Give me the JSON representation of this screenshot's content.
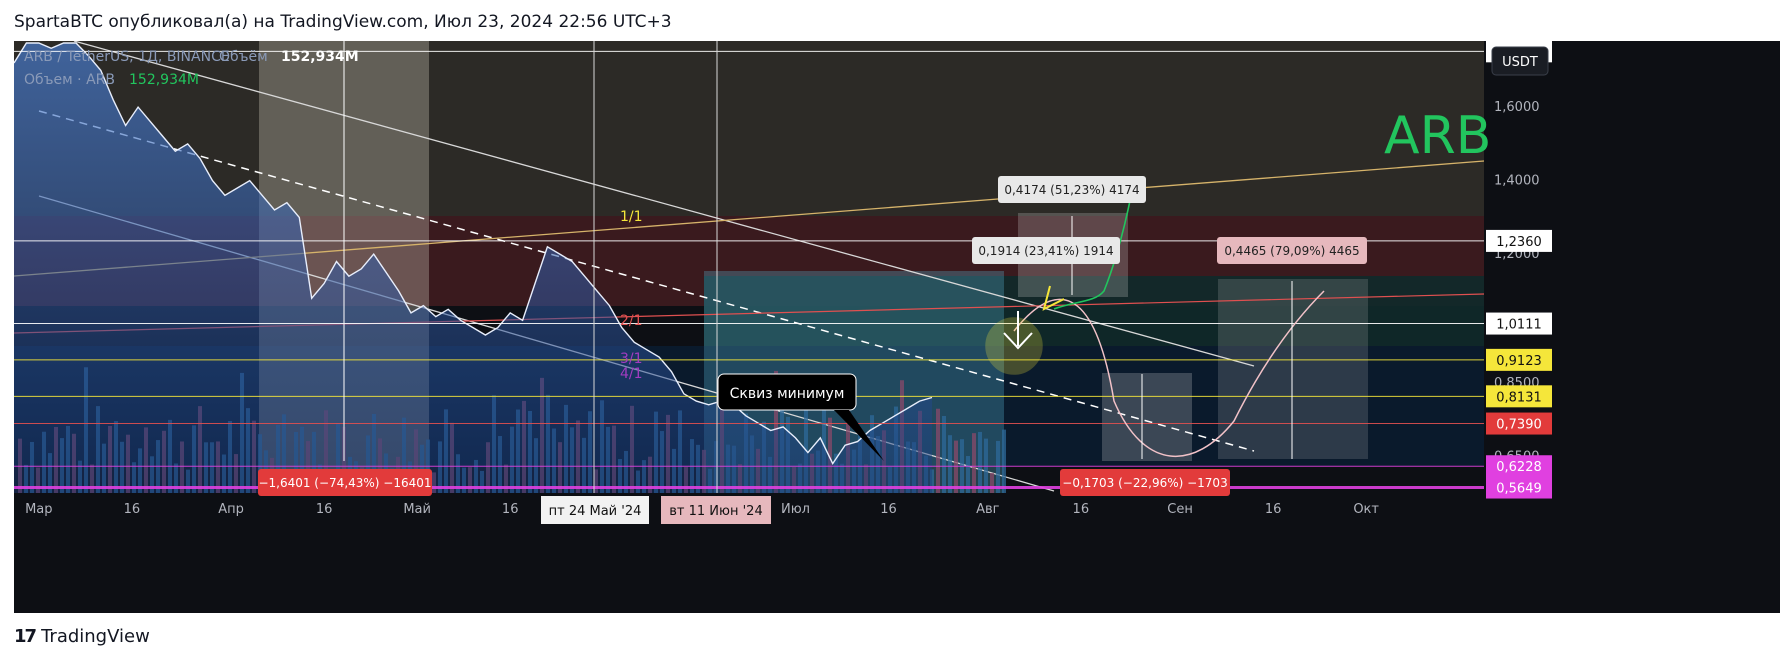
{
  "header": {
    "publish_line": "SpartaBTC опубликовал(а) на TradingView.com, Июл 23, 2024 22:56 UTC+3"
  },
  "legend": {
    "symbol_line": "ARB / TetherUS, 1Д, BINANCE",
    "volume_label": "Объём",
    "volume_value": "152,934M",
    "volume_line": "Объем · ARB",
    "volume_line_value": "152,934M"
  },
  "currency_button": "USDT",
  "big_label": "ARB",
  "footer": {
    "logo_mark": "17",
    "logo_text": "TradingView"
  },
  "colors": {
    "background": "#0d0f14",
    "price_area": "#4a7fd4",
    "accent_green": "#22c55e",
    "magenta_line": "#e040e0",
    "red_tag": "#e23b3b",
    "yellow_tag": "#f5e63a"
  },
  "chart_data": {
    "type": "area",
    "xlim": [
      "2024-02-26",
      "2024-10-20"
    ],
    "ylim": [
      0.55,
      1.78
    ],
    "x_tick_labels": [
      "Мар",
      "16",
      "Апр",
      "16",
      "Май",
      "16",
      "Июн",
      "16",
      "Июл",
      "16",
      "Авг",
      "16",
      "Сен",
      "16",
      "Окт"
    ],
    "x_tick_dates": [
      "2024-03-01",
      "2024-03-16",
      "2024-04-01",
      "2024-04-16",
      "2024-05-01",
      "2024-05-16",
      "2024-06-01",
      "2024-06-16",
      "2024-07-01",
      "2024-07-16",
      "2024-08-01",
      "2024-08-16",
      "2024-09-01",
      "2024-09-16",
      "2024-10-01"
    ],
    "y_tick_labels": [
      "1,6000",
      "1,4000",
      "1,2000",
      "0,8500",
      "0,6500"
    ],
    "y_tick_values": [
      1.6,
      1.4,
      1.2,
      0.85,
      0.65
    ],
    "price_tags": [
      {
        "label": "1,7519",
        "value": 1.7519,
        "style": "white"
      },
      {
        "label": "1,2360",
        "value": 1.236,
        "style": "white"
      },
      {
        "label": "1,0111",
        "value": 1.0111,
        "style": "white"
      },
      {
        "label": "0,9123",
        "value": 0.9123,
        "style": "yellow"
      },
      {
        "label": "0,8131",
        "value": 0.8131,
        "style": "yellow"
      },
      {
        "label": "0,7390",
        "value": 0.739,
        "style": "red"
      },
      {
        "label": "0,6228",
        "value": 0.6228,
        "style": "magenta"
      },
      {
        "label": "0,5649",
        "value": 0.5649,
        "style": "magenta"
      }
    ],
    "series": [
      {
        "x": [
          "2024-02-26",
          "2024-02-28",
          "2024-03-01",
          "2024-03-03",
          "2024-03-05",
          "2024-03-07",
          "2024-03-09",
          "2024-03-11",
          "2024-03-13",
          "2024-03-15",
          "2024-03-17",
          "2024-03-19",
          "2024-03-21",
          "2024-03-23",
          "2024-03-25",
          "2024-03-27",
          "2024-03-29",
          "2024-03-31",
          "2024-04-02",
          "2024-04-04",
          "2024-04-06",
          "2024-04-08",
          "2024-04-10",
          "2024-04-12",
          "2024-04-14",
          "2024-04-16",
          "2024-04-18",
          "2024-04-20",
          "2024-04-22",
          "2024-04-24",
          "2024-04-26",
          "2024-04-28",
          "2024-04-30",
          "2024-05-02",
          "2024-05-04",
          "2024-05-06",
          "2024-05-08",
          "2024-05-10",
          "2024-05-12",
          "2024-05-14",
          "2024-05-16",
          "2024-05-18",
          "2024-05-20",
          "2024-05-22",
          "2024-05-24",
          "2024-05-26",
          "2024-05-28",
          "2024-05-30",
          "2024-06-01",
          "2024-06-03",
          "2024-06-05",
          "2024-06-07",
          "2024-06-09",
          "2024-06-11",
          "2024-06-13",
          "2024-06-15",
          "2024-06-17",
          "2024-06-19",
          "2024-06-21",
          "2024-06-23",
          "2024-06-25",
          "2024-06-27",
          "2024-06-29",
          "2024-07-01",
          "2024-07-03",
          "2024-07-05",
          "2024-07-07",
          "2024-07-09",
          "2024-07-11",
          "2024-07-13",
          "2024-07-15",
          "2024-07-17",
          "2024-07-19",
          "2024-07-21",
          "2024-07-23"
        ],
        "y": [
          1.72,
          1.78,
          1.8,
          1.76,
          1.82,
          1.78,
          1.74,
          1.7,
          1.62,
          1.55,
          1.6,
          1.56,
          1.52,
          1.48,
          1.5,
          1.46,
          1.4,
          1.36,
          1.38,
          1.4,
          1.36,
          1.32,
          1.34,
          1.3,
          1.08,
          1.12,
          1.18,
          1.14,
          1.16,
          1.2,
          1.15,
          1.1,
          1.04,
          1.06,
          1.03,
          1.05,
          1.02,
          1.0,
          0.98,
          1.0,
          1.04,
          1.02,
          1.12,
          1.22,
          1.2,
          1.18,
          1.14,
          1.1,
          1.06,
          1.0,
          0.96,
          0.94,
          0.92,
          0.88,
          0.82,
          0.8,
          0.79,
          0.8,
          0.79,
          0.76,
          0.74,
          0.72,
          0.73,
          0.7,
          0.66,
          0.7,
          0.63,
          0.68,
          0.69,
          0.72,
          0.74,
          0.76,
          0.78,
          0.8,
          0.81
        ]
      }
    ],
    "horizontal_lines": [
      1.7519,
      1.236,
      1.0111,
      0.9123,
      0.8131,
      0.739,
      0.6228,
      0.5649
    ],
    "fib_labels": [
      "1/1",
      "2/1",
      "3/1",
      "4/1"
    ],
    "annotations": [
      {
        "text": "Сквиз минимум"
      },
      {
        "text": "0,4174 (51,23%) 4174"
      },
      {
        "text": "0,1914 (23,41%) 1914"
      },
      {
        "text": "0,4465 (79,09%) 4465"
      },
      {
        "text": "−1,6401 (−74,43%) −16401"
      },
      {
        "text": "−0,1703 (−22,96%) −1703"
      }
    ],
    "date_markers": [
      "пт 24 Май '24",
      "вт 11 Июн '24"
    ]
  }
}
